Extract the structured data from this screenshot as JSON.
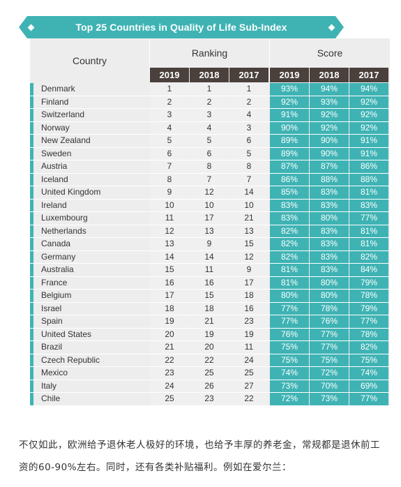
{
  "title": "Top 25 Countries in Quality of Life Sub-Index",
  "headers": {
    "country": "Country",
    "ranking": "Ranking",
    "score": "Score",
    "years": [
      "2019",
      "2018",
      "2017"
    ]
  },
  "rows": [
    {
      "country": "Denmark",
      "rank": [
        "1",
        "1",
        "1"
      ],
      "score": [
        "93%",
        "94%",
        "94%"
      ]
    },
    {
      "country": "Finland",
      "rank": [
        "2",
        "2",
        "2"
      ],
      "score": [
        "92%",
        "93%",
        "92%"
      ]
    },
    {
      "country": "Switzerland",
      "rank": [
        "3",
        "3",
        "4"
      ],
      "score": [
        "91%",
        "92%",
        "92%"
      ]
    },
    {
      "country": "Norway",
      "rank": [
        "4",
        "4",
        "3"
      ],
      "score": [
        "90%",
        "92%",
        "92%"
      ]
    },
    {
      "country": "New Zealand",
      "rank": [
        "5",
        "5",
        "6"
      ],
      "score": [
        "89%",
        "90%",
        "91%"
      ]
    },
    {
      "country": "Sweden",
      "rank": [
        "6",
        "6",
        "5"
      ],
      "score": [
        "89%",
        "90%",
        "91%"
      ]
    },
    {
      "country": "Austria",
      "rank": [
        "7",
        "8",
        "8"
      ],
      "score": [
        "87%",
        "87%",
        "86%"
      ]
    },
    {
      "country": "Iceland",
      "rank": [
        "8",
        "7",
        "7"
      ],
      "score": [
        "86%",
        "88%",
        "88%"
      ]
    },
    {
      "country": "United Kingdom",
      "rank": [
        "9",
        "12",
        "14"
      ],
      "score": [
        "85%",
        "83%",
        "81%"
      ]
    },
    {
      "country": "Ireland",
      "rank": [
        "10",
        "10",
        "10"
      ],
      "score": [
        "83%",
        "83%",
        "83%"
      ]
    },
    {
      "country": "Luxembourg",
      "rank": [
        "11",
        "17",
        "21"
      ],
      "score": [
        "83%",
        "80%",
        "77%"
      ]
    },
    {
      "country": "Netherlands",
      "rank": [
        "12",
        "13",
        "13"
      ],
      "score": [
        "82%",
        "83%",
        "81%"
      ]
    },
    {
      "country": "Canada",
      "rank": [
        "13",
        "9",
        "15"
      ],
      "score": [
        "82%",
        "83%",
        "81%"
      ]
    },
    {
      "country": "Germany",
      "rank": [
        "14",
        "14",
        "12"
      ],
      "score": [
        "82%",
        "83%",
        "82%"
      ]
    },
    {
      "country": "Australia",
      "rank": [
        "15",
        "11",
        "9"
      ],
      "score": [
        "81%",
        "83%",
        "84%"
      ]
    },
    {
      "country": "France",
      "rank": [
        "16",
        "16",
        "17"
      ],
      "score": [
        "81%",
        "80%",
        "79%"
      ]
    },
    {
      "country": "Belgium",
      "rank": [
        "17",
        "15",
        "18"
      ],
      "score": [
        "80%",
        "80%",
        "78%"
      ]
    },
    {
      "country": "Israel",
      "rank": [
        "18",
        "18",
        "16"
      ],
      "score": [
        "77%",
        "78%",
        "79%"
      ]
    },
    {
      "country": "Spain",
      "rank": [
        "19",
        "21",
        "23"
      ],
      "score": [
        "77%",
        "76%",
        "77%"
      ]
    },
    {
      "country": "United States",
      "rank": [
        "20",
        "19",
        "19"
      ],
      "score": [
        "76%",
        "77%",
        "78%"
      ]
    },
    {
      "country": "Brazil",
      "rank": [
        "21",
        "20",
        "11"
      ],
      "score": [
        "75%",
        "77%",
        "82%"
      ]
    },
    {
      "country": "Czech Republic",
      "rank": [
        "22",
        "22",
        "24"
      ],
      "score": [
        "75%",
        "75%",
        "75%"
      ]
    },
    {
      "country": "Mexico",
      "rank": [
        "23",
        "25",
        "25"
      ],
      "score": [
        "74%",
        "72%",
        "74%"
      ]
    },
    {
      "country": "Italy",
      "rank": [
        "24",
        "26",
        "27"
      ],
      "score": [
        "73%",
        "70%",
        "69%"
      ]
    },
    {
      "country": "Chile",
      "rank": [
        "25",
        "23",
        "22"
      ],
      "score": [
        "72%",
        "73%",
        "77%"
      ]
    }
  ],
  "footer_text": "不仅如此，欧洲给予退休老人极好的环境，也给予丰厚的养老金，常规都是退休前工资的60-90%左右。同时，还有各类补贴福利。例如在爱尔兰：",
  "colors": {
    "accent": "#3fb3b4",
    "year_header": "#4a403c",
    "table_bg": "#ededed"
  }
}
